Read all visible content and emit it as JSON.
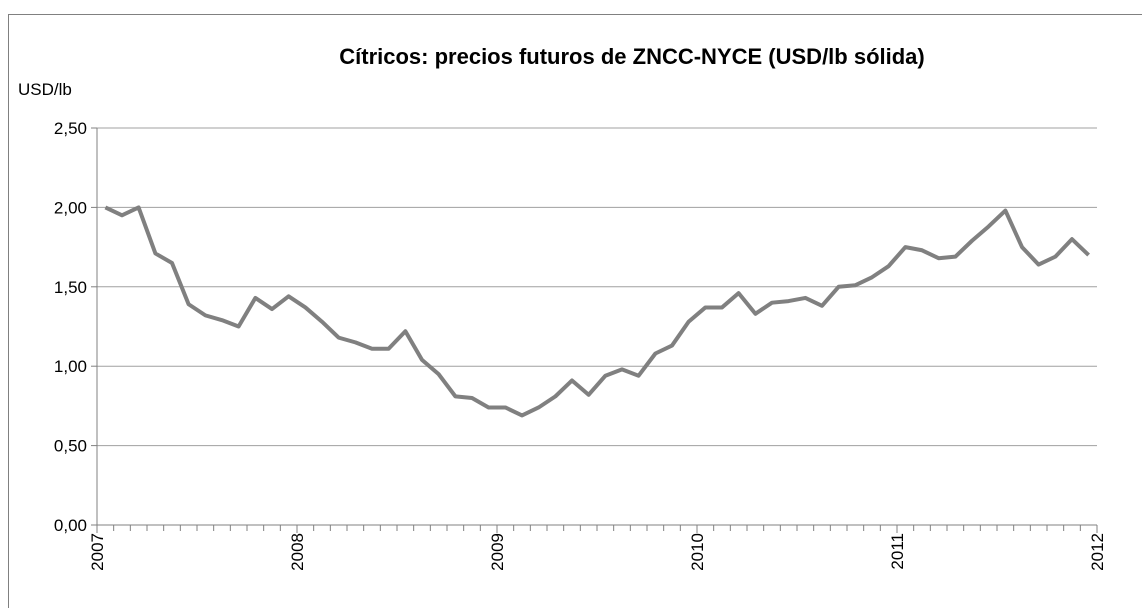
{
  "chart_data": {
    "type": "line",
    "title": "Cítricos: precios futuros de ZNCC-NYCE (USD/lb sólida)",
    "y_label": "USD/lb",
    "x": [
      2007.042,
      2007.125,
      2007.208,
      2007.292,
      2007.375,
      2007.458,
      2007.542,
      2007.625,
      2007.708,
      2007.792,
      2007.875,
      2007.958,
      2008.042,
      2008.125,
      2008.208,
      2008.292,
      2008.375,
      2008.458,
      2008.542,
      2008.625,
      2008.708,
      2008.792,
      2008.875,
      2008.958,
      2009.042,
      2009.125,
      2009.208,
      2009.292,
      2009.375,
      2009.458,
      2009.542,
      2009.625,
      2009.708,
      2009.792,
      2009.875,
      2009.958,
      2010.042,
      2010.125,
      2010.208,
      2010.292,
      2010.375,
      2010.458,
      2010.542,
      2010.625,
      2010.708,
      2010.792,
      2010.875,
      2010.958,
      2011.042,
      2011.125,
      2011.208,
      2011.292,
      2011.375,
      2011.458,
      2011.542,
      2011.625,
      2011.708,
      2011.792,
      2011.875,
      2011.958
    ],
    "series": [
      {
        "name": "ZNCC-NYCE",
        "color": "#808080",
        "values": [
          2.0,
          1.95,
          2.0,
          1.71,
          1.65,
          1.39,
          1.32,
          1.29,
          1.25,
          1.43,
          1.36,
          1.44,
          1.37,
          1.28,
          1.18,
          1.15,
          1.11,
          1.11,
          1.22,
          1.04,
          0.95,
          0.81,
          0.8,
          0.74,
          0.74,
          0.69,
          0.74,
          0.81,
          0.91,
          0.82,
          0.94,
          0.98,
          0.94,
          1.08,
          1.13,
          1.28,
          1.37,
          1.37,
          1.46,
          1.33,
          1.4,
          1.41,
          1.43,
          1.38,
          1.5,
          1.51,
          1.56,
          1.63,
          1.75,
          1.73,
          1.68,
          1.69,
          1.79,
          1.88,
          1.98,
          1.75,
          1.64,
          1.69,
          1.8,
          1.7
        ]
      }
    ],
    "xlim": [
      2007,
      2012
    ],
    "xticks": [
      2007,
      2008,
      2009,
      2010,
      2011,
      2012
    ],
    "ylim": [
      0,
      2.5
    ],
    "yticks": [
      {
        "value": 0,
        "label": "0,00"
      },
      {
        "value": 0.5,
        "label": "0,50"
      },
      {
        "value": 1,
        "label": "1,00"
      },
      {
        "value": 1.5,
        "label": "1,50"
      },
      {
        "value": 2,
        "label": "2,00"
      },
      {
        "value": 2.5,
        "label": "2,50"
      }
    ],
    "grid": true
  }
}
